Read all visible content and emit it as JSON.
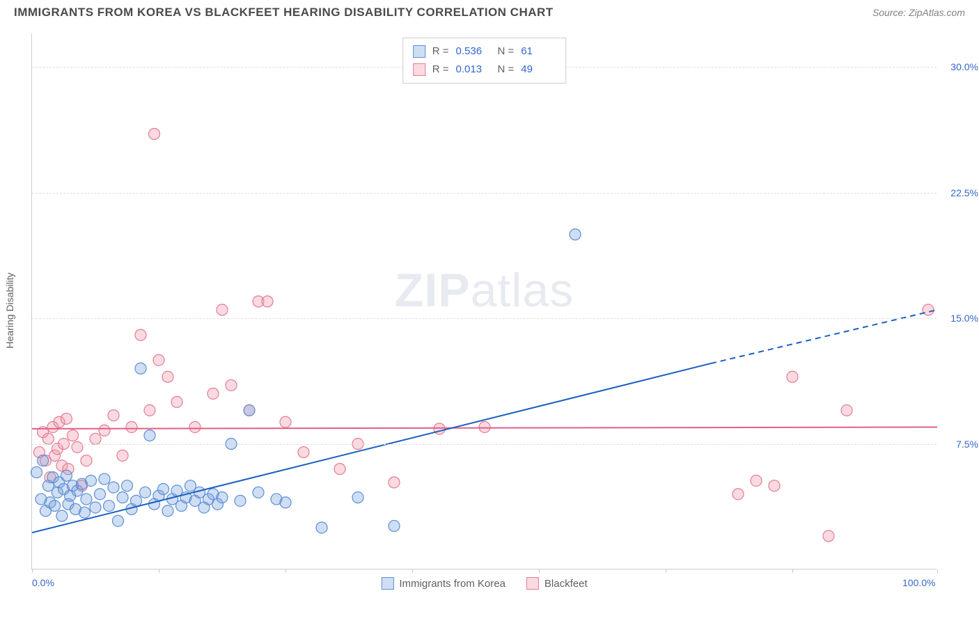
{
  "header": {
    "title": "IMMIGRANTS FROM KOREA VS BLACKFEET HEARING DISABILITY CORRELATION CHART",
    "source": "Source: ZipAtlas.com"
  },
  "chart": {
    "type": "scatter",
    "ylabel": "Hearing Disability",
    "xlim": [
      0,
      100
    ],
    "ylim": [
      0,
      32
    ],
    "yticks": [
      7.5,
      15.0,
      22.5,
      30.0
    ],
    "ytick_labels": [
      "7.5%",
      "15.0%",
      "22.5%",
      "30.0%"
    ],
    "xtick_positions": [
      0,
      14,
      28,
      42,
      56,
      70,
      84,
      100
    ],
    "xtick_labels_shown": {
      "0": "0.0%",
      "100": "100.0%"
    },
    "background_color": "#ffffff",
    "grid_color": "#dddddd",
    "axis_color": "#cccccc",
    "marker_radius": 8,
    "marker_stroke_width": 1.2,
    "series": {
      "korea": {
        "label": "Immigrants from Korea",
        "fill": "rgba(120,160,220,0.35)",
        "stroke": "#5a8fd6",
        "points": [
          [
            0.5,
            5.8
          ],
          [
            1.0,
            4.2
          ],
          [
            1.2,
            6.5
          ],
          [
            1.5,
            3.5
          ],
          [
            1.8,
            5.0
          ],
          [
            2.0,
            4.0
          ],
          [
            2.3,
            5.5
          ],
          [
            2.5,
            3.8
          ],
          [
            2.8,
            4.6
          ],
          [
            3.0,
            5.2
          ],
          [
            3.3,
            3.2
          ],
          [
            3.5,
            4.8
          ],
          [
            3.8,
            5.6
          ],
          [
            4.0,
            3.9
          ],
          [
            4.2,
            4.4
          ],
          [
            4.5,
            5.0
          ],
          [
            4.8,
            3.6
          ],
          [
            5.0,
            4.7
          ],
          [
            5.5,
            5.1
          ],
          [
            5.8,
            3.4
          ],
          [
            6.0,
            4.2
          ],
          [
            6.5,
            5.3
          ],
          [
            7.0,
            3.7
          ],
          [
            7.5,
            4.5
          ],
          [
            8.0,
            5.4
          ],
          [
            8.5,
            3.8
          ],
          [
            9.0,
            4.9
          ],
          [
            9.5,
            2.9
          ],
          [
            10.0,
            4.3
          ],
          [
            10.5,
            5.0
          ],
          [
            11.0,
            3.6
          ],
          [
            11.5,
            4.1
          ],
          [
            12.0,
            12.0
          ],
          [
            12.5,
            4.6
          ],
          [
            13.0,
            8.0
          ],
          [
            13.5,
            3.9
          ],
          [
            14.0,
            4.4
          ],
          [
            14.5,
            4.8
          ],
          [
            15.0,
            3.5
          ],
          [
            15.5,
            4.2
          ],
          [
            16.0,
            4.7
          ],
          [
            16.5,
            3.8
          ],
          [
            17.0,
            4.3
          ],
          [
            17.5,
            5.0
          ],
          [
            18.0,
            4.1
          ],
          [
            18.5,
            4.6
          ],
          [
            19.0,
            3.7
          ],
          [
            19.5,
            4.2
          ],
          [
            20.0,
            4.5
          ],
          [
            20.5,
            3.9
          ],
          [
            21.0,
            4.3
          ],
          [
            22.0,
            7.5
          ],
          [
            23.0,
            4.1
          ],
          [
            24.0,
            9.5
          ],
          [
            25.0,
            4.6
          ],
          [
            27.0,
            4.2
          ],
          [
            28.0,
            4.0
          ],
          [
            32.0,
            2.5
          ],
          [
            36.0,
            4.3
          ],
          [
            40.0,
            2.6
          ],
          [
            60.0,
            20.0
          ]
        ],
        "regression": {
          "x1": 0,
          "y1": 2.2,
          "x2": 75,
          "y2": 12.3,
          "x3": 100,
          "y3": 15.5,
          "color": "#1b5fc1",
          "width": 2
        }
      },
      "blackfeet": {
        "label": "Blackfeet",
        "fill": "rgba(240,150,170,0.35)",
        "stroke": "#e67a94",
        "points": [
          [
            0.8,
            7.0
          ],
          [
            1.2,
            8.2
          ],
          [
            1.5,
            6.5
          ],
          [
            1.8,
            7.8
          ],
          [
            2.0,
            5.5
          ],
          [
            2.3,
            8.5
          ],
          [
            2.5,
            6.8
          ],
          [
            2.8,
            7.2
          ],
          [
            3.0,
            8.8
          ],
          [
            3.3,
            6.2
          ],
          [
            3.5,
            7.5
          ],
          [
            3.8,
            9.0
          ],
          [
            4.0,
            6.0
          ],
          [
            4.5,
            8.0
          ],
          [
            5.0,
            7.3
          ],
          [
            5.5,
            5.0
          ],
          [
            6.0,
            6.5
          ],
          [
            7.0,
            7.8
          ],
          [
            8.0,
            8.3
          ],
          [
            9.0,
            9.2
          ],
          [
            10.0,
            6.8
          ],
          [
            11.0,
            8.5
          ],
          [
            12.0,
            14.0
          ],
          [
            13.0,
            9.5
          ],
          [
            13.5,
            26.0
          ],
          [
            14.0,
            12.5
          ],
          [
            15.0,
            11.5
          ],
          [
            16.0,
            10.0
          ],
          [
            18.0,
            8.5
          ],
          [
            20.0,
            10.5
          ],
          [
            21.0,
            15.5
          ],
          [
            22.0,
            11.0
          ],
          [
            24.0,
            9.5
          ],
          [
            25.0,
            16.0
          ],
          [
            26.0,
            16.0
          ],
          [
            28.0,
            8.8
          ],
          [
            30.0,
            7.0
          ],
          [
            34.0,
            6.0
          ],
          [
            36.0,
            7.5
          ],
          [
            40.0,
            5.2
          ],
          [
            45.0,
            8.4
          ],
          [
            78.0,
            4.5
          ],
          [
            80.0,
            5.3
          ],
          [
            82.0,
            5.0
          ],
          [
            84.0,
            11.5
          ],
          [
            88.0,
            2.0
          ],
          [
            90.0,
            9.5
          ],
          [
            99.0,
            15.5
          ],
          [
            50.0,
            8.5
          ]
        ],
        "regression": {
          "x1": 0,
          "y1": 8.4,
          "x2": 100,
          "y2": 8.5,
          "color": "#e06088",
          "width": 2
        }
      }
    },
    "legend_stats": [
      {
        "swatch_fill": "rgba(120,160,220,0.35)",
        "swatch_stroke": "#5a8fd6",
        "R": "0.536",
        "N": "61"
      },
      {
        "swatch_fill": "rgba(240,150,170,0.35)",
        "swatch_stroke": "#e67a94",
        "R": "0.013",
        "N": "49"
      }
    ],
    "watermark": {
      "zip": "ZIP",
      "atlas": "atlas"
    }
  }
}
